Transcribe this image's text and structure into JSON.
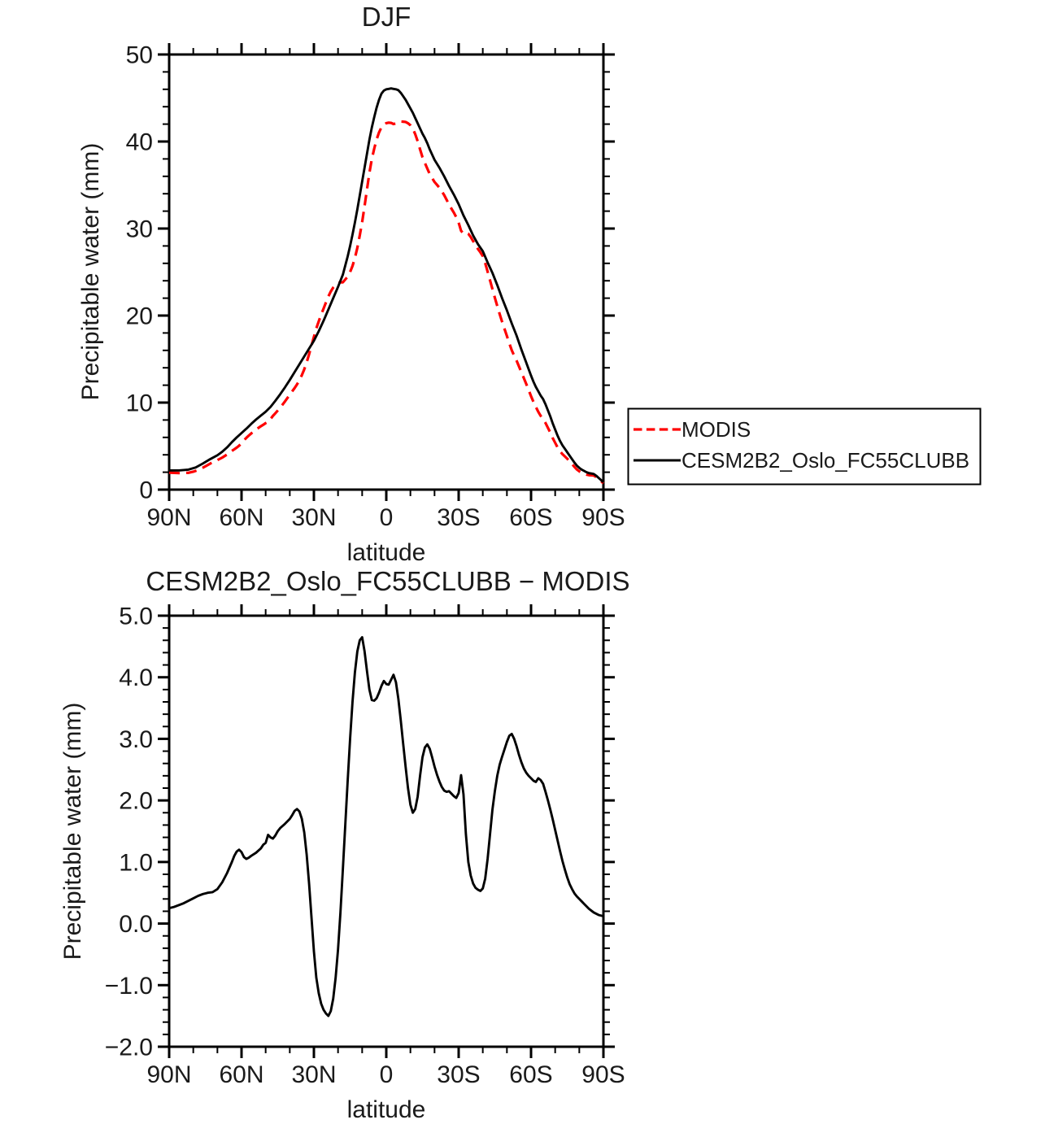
{
  "figure": {
    "background": "#ffffff",
    "text_color": "#1a1a1a",
    "axis_color": "#000000"
  },
  "chart_data": [
    {
      "id": "djf-precipitable-water",
      "type": "line",
      "title": "DJF",
      "xlabel": "latitude",
      "ylabel": "Precipitable water (mm)",
      "xlim_lat": [
        90,
        -90
      ],
      "ylim": [
        0,
        50
      ],
      "x_major_ticks_lat": [
        90,
        60,
        30,
        0,
        -30,
        -60,
        -90
      ],
      "x_tick_labels": [
        "90N",
        "60N",
        "30N",
        "0",
        "30S",
        "60S",
        "90S"
      ],
      "x_minor_step_deg": 10,
      "y_major_ticks": [
        0,
        10,
        20,
        30,
        40,
        50
      ],
      "y_tick_labels": [
        "0",
        "10",
        "20",
        "30",
        "40",
        "50"
      ],
      "y_minor_step": 2,
      "grid": false,
      "legend_position": "outside-right",
      "series": [
        {
          "name": "MODIS",
          "color": "#ff0000",
          "line_style": "dashed",
          "lat": [
            90,
            88,
            86,
            84,
            82,
            80,
            78,
            76,
            74,
            72,
            70,
            68,
            66,
            64,
            63,
            62,
            61,
            60,
            59,
            58,
            57,
            56,
            54,
            52,
            51,
            50,
            49,
            48,
            47,
            46,
            45,
            44,
            42,
            40,
            39,
            38,
            37,
            36,
            35,
            34,
            33,
            32,
            31,
            30,
            29,
            28,
            27,
            26,
            25,
            24,
            23,
            22,
            21,
            20,
            19,
            18,
            17,
            16,
            15,
            14,
            13,
            12,
            11,
            10,
            9,
            8,
            7,
            6,
            5,
            4,
            3,
            2,
            1,
            0,
            -1,
            -2,
            -3,
            -4,
            -5,
            -6,
            -7,
            -8,
            -9,
            -10,
            -11,
            -12,
            -13,
            -14,
            -15,
            -16,
            -17,
            -18,
            -19,
            -20,
            -21,
            -22,
            -23,
            -24,
            -25,
            -26,
            -27,
            -28,
            -29,
            -30,
            -31,
            -32,
            -33,
            -34,
            -35,
            -36,
            -37,
            -38,
            -39,
            -40,
            -41,
            -42,
            -43,
            -44,
            -45,
            -46,
            -47,
            -48,
            -49,
            -50,
            -51,
            -52,
            -53,
            -54,
            -55,
            -56,
            -57,
            -58,
            -59,
            -60,
            -61,
            -62,
            -63,
            -64,
            -65,
            -66,
            -67,
            -68,
            -69,
            -70,
            -71,
            -72,
            -73,
            -74,
            -75,
            -76,
            -77,
            -78,
            -79,
            -80,
            -81,
            -82,
            -83,
            -84,
            -85,
            -86,
            -87,
            -88,
            -89,
            -90
          ],
          "values": [
            1.95,
            1.93,
            1.9,
            1.92,
            1.93,
            2.06,
            2.25,
            2.52,
            2.83,
            3.14,
            3.39,
            3.68,
            4.03,
            4.45,
            4.63,
            4.83,
            5.05,
            5.34,
            5.67,
            5.95,
            6.21,
            6.45,
            6.9,
            7.28,
            7.45,
            7.64,
            7.79,
            8.1,
            8.47,
            8.77,
            9.08,
            9.4,
            10.13,
            10.9,
            11.29,
            11.67,
            12.09,
            12.58,
            13.15,
            13.82,
            14.63,
            15.55,
            16.55,
            17.55,
            18.53,
            19.33,
            20.1,
            20.8,
            21.51,
            22.2,
            22.77,
            23.22,
            23.53,
            23.72,
            23.82,
            23.82,
            24.15,
            24.48,
            25.0,
            25.7,
            26.62,
            27.78,
            29.2,
            30.75,
            32.58,
            34.5,
            36.4,
            37.97,
            39.18,
            40.24,
            41.05,
            41.64,
            41.91,
            42.11,
            42.17,
            42.14,
            42.01,
            42.08,
            42.25,
            42.3,
            42.28,
            42.25,
            42.1,
            41.87,
            41.5,
            40.84,
            40.04,
            39.1,
            38.2,
            37.54,
            36.89,
            36.26,
            35.8,
            35.35,
            35.03,
            34.69,
            34.28,
            33.84,
            33.31,
            32.75,
            32.29,
            31.83,
            31.31,
            30.68,
            29.74,
            29.4,
            29.5,
            29.4,
            29.02,
            28.55,
            28.12,
            27.65,
            27.27,
            26.83,
            26.02,
            25.05,
            24.05,
            23.05,
            22.05,
            21.1,
            20.17,
            19.29,
            18.47,
            17.65,
            16.8,
            16.02,
            15.4,
            14.82,
            14.16,
            13.48,
            12.83,
            12.15,
            11.45,
            10.74,
            10.08,
            9.5,
            8.94,
            8.47,
            8.13,
            7.66,
            7.1,
            6.55,
            5.91,
            5.38,
            4.85,
            4.42,
            4.08,
            3.82,
            3.55,
            3.26,
            2.94,
            2.61,
            2.31,
            2.1,
            1.94,
            1.83,
            1.72,
            1.66,
            1.64,
            1.62,
            1.44,
            1.21,
            0.97,
            0.73
          ]
        },
        {
          "name": "CESM2B2_Oslo_FC55CLUBB",
          "color": "#000000",
          "line_style": "solid",
          "lat": [
            90,
            86,
            82,
            79,
            76,
            73,
            70,
            68,
            66,
            64,
            62,
            60,
            58,
            56,
            54,
            52,
            50,
            48,
            46,
            44,
            42,
            40,
            38,
            36,
            34,
            32,
            30,
            28,
            26,
            24,
            22,
            20,
            18,
            16,
            15,
            14,
            13,
            12,
            11,
            10,
            9,
            8,
            7,
            6,
            5,
            4,
            3,
            2,
            1,
            0,
            -1,
            -2,
            -3,
            -4,
            -5,
            -6,
            -7,
            -8,
            -9,
            -10,
            -11,
            -12,
            -13,
            -14,
            -15,
            -16,
            -17,
            -18,
            -19,
            -20,
            -22,
            -24,
            -26,
            -28,
            -30,
            -32,
            -34,
            -36,
            -38,
            -40,
            -42,
            -44,
            -46,
            -48,
            -50,
            -52,
            -54,
            -56,
            -58,
            -60,
            -61,
            -62,
            -63,
            -64,
            -65,
            -66,
            -67,
            -68,
            -69,
            -70,
            -71,
            -72,
            -73,
            -74,
            -75,
            -76,
            -77,
            -78,
            -79,
            -80,
            -81,
            -82,
            -83,
            -84,
            -85,
            -86,
            -87,
            -88,
            -89,
            -90
          ],
          "values": [
            2.2,
            2.2,
            2.3,
            2.55,
            3.0,
            3.5,
            3.95,
            4.35,
            4.85,
            5.45,
            6.0,
            6.5,
            7.0,
            7.55,
            8.05,
            8.5,
            8.95,
            9.5,
            10.2,
            10.95,
            11.75,
            12.6,
            13.5,
            14.4,
            15.3,
            16.2,
            17.1,
            18.2,
            19.4,
            20.7,
            22.0,
            23.3,
            24.7,
            26.8,
            28.0,
            29.3,
            30.7,
            32.2,
            33.8,
            35.4,
            37.0,
            38.6,
            40.2,
            41.6,
            42.8,
            43.9,
            44.8,
            45.5,
            45.85,
            46.0,
            46.05,
            46.1,
            46.05,
            46.0,
            45.9,
            45.6,
            45.2,
            44.8,
            44.3,
            43.8,
            43.3,
            42.7,
            42.1,
            41.5,
            40.9,
            40.4,
            39.8,
            39.1,
            38.5,
            37.9,
            37.0,
            36.0,
            34.9,
            33.9,
            32.8,
            31.5,
            30.4,
            29.2,
            28.2,
            27.4,
            26.1,
            24.9,
            23.5,
            22.0,
            20.6,
            19.1,
            17.7,
            16.1,
            14.6,
            13.1,
            12.4,
            11.8,
            11.3,
            10.8,
            10.4,
            9.8,
            9.1,
            8.4,
            7.6,
            6.9,
            6.2,
            5.6,
            5.1,
            4.7,
            4.3,
            3.9,
            3.5,
            3.1,
            2.75,
            2.5,
            2.3,
            2.15,
            2.0,
            1.9,
            1.85,
            1.8,
            1.6,
            1.35,
            1.1,
            0.85
          ]
        }
      ]
    },
    {
      "id": "difference-cesm-minus-modis",
      "type": "line",
      "title": "CESM2B2_Oslo_FC55CLUBB − MODIS",
      "xlabel": "latitude",
      "ylabel": "Precipitable water (mm)",
      "xlim_lat": [
        90,
        -90
      ],
      "ylim": [
        -2,
        5
      ],
      "x_major_ticks_lat": [
        90,
        60,
        30,
        0,
        -30,
        -60,
        -90
      ],
      "x_tick_labels": [
        "90N",
        "60N",
        "30N",
        "0",
        "30S",
        "60S",
        "90S"
      ],
      "x_minor_step_deg": 10,
      "y_major_ticks": [
        -2,
        -1,
        0,
        1,
        2,
        3,
        4,
        5
      ],
      "y_tick_labels": [
        "−2.0",
        "−1.0",
        "0.0",
        "1.0",
        "2.0",
        "3.0",
        "4.0",
        "5.0"
      ],
      "y_minor_step": 0.2,
      "grid": false,
      "series": [
        {
          "name": "CESM2B2_Oslo_FC55CLUBB − MODIS",
          "color": "#000000",
          "line_style": "solid",
          "lat": [
            90,
            88,
            86,
            84,
            82,
            80,
            78,
            76,
            74,
            72,
            70,
            68,
            66,
            64,
            63,
            62,
            61,
            60,
            59,
            58,
            57,
            56,
            54,
            52,
            51,
            50,
            49,
            48,
            47,
            46,
            45,
            44,
            42,
            40,
            39,
            38,
            37,
            36,
            35,
            34,
            33,
            32,
            31,
            30,
            29,
            28,
            27,
            26,
            25,
            24,
            23,
            22,
            21,
            20,
            19,
            18,
            17,
            16,
            15,
            14,
            13,
            12,
            11,
            10,
            9,
            8,
            7,
            6,
            5,
            4,
            3,
            2,
            1,
            0,
            -1,
            -2,
            -3,
            -4,
            -5,
            -6,
            -7,
            -8,
            -9,
            -10,
            -11,
            -12,
            -13,
            -14,
            -15,
            -16,
            -17,
            -18,
            -19,
            -20,
            -21,
            -22,
            -23,
            -24,
            -25,
            -26,
            -27,
            -28,
            -29,
            -30,
            -31,
            -32,
            -33,
            -34,
            -35,
            -36,
            -37,
            -38,
            -39,
            -40,
            -41,
            -42,
            -43,
            -44,
            -45,
            -46,
            -47,
            -48,
            -49,
            -50,
            -51,
            -52,
            -53,
            -54,
            -55,
            -56,
            -57,
            -58,
            -59,
            -60,
            -61,
            -62,
            -63,
            -64,
            -65,
            -66,
            -67,
            -68,
            -69,
            -70,
            -71,
            -72,
            -73,
            -74,
            -75,
            -76,
            -77,
            -78,
            -79,
            -80,
            -81,
            -82,
            -83,
            -84,
            -85,
            -86,
            -87,
            -88,
            -89,
            -90
          ],
          "values": [
            0.25,
            0.27,
            0.3,
            0.33,
            0.37,
            0.41,
            0.45,
            0.48,
            0.5,
            0.51,
            0.56,
            0.67,
            0.82,
            1.0,
            1.1,
            1.17,
            1.2,
            1.16,
            1.08,
            1.05,
            1.07,
            1.1,
            1.15,
            1.22,
            1.28,
            1.31,
            1.44,
            1.4,
            1.38,
            1.43,
            1.5,
            1.55,
            1.62,
            1.7,
            1.76,
            1.83,
            1.86,
            1.82,
            1.7,
            1.48,
            1.12,
            0.65,
            0.1,
            -0.45,
            -0.88,
            -1.13,
            -1.3,
            -1.4,
            -1.46,
            -1.5,
            -1.42,
            -1.22,
            -0.88,
            -0.42,
            0.18,
            0.88,
            1.6,
            2.32,
            3.0,
            3.6,
            4.08,
            4.42,
            4.6,
            4.65,
            4.42,
            4.1,
            3.8,
            3.63,
            3.62,
            3.66,
            3.75,
            3.86,
            3.94,
            3.89,
            3.88,
            3.96,
            4.04,
            3.92,
            3.65,
            3.3,
            2.92,
            2.55,
            2.2,
            1.93,
            1.8,
            1.86,
            2.06,
            2.4,
            2.7,
            2.86,
            2.91,
            2.84,
            2.7,
            2.55,
            2.42,
            2.31,
            2.22,
            2.16,
            2.14,
            2.15,
            2.11,
            2.07,
            2.04,
            2.12,
            2.41,
            2.1,
            1.45,
            1.0,
            0.78,
            0.65,
            0.58,
            0.55,
            0.53,
            0.57,
            0.73,
            1.05,
            1.45,
            1.85,
            2.15,
            2.4,
            2.58,
            2.71,
            2.83,
            2.95,
            3.05,
            3.08,
            3.0,
            2.88,
            2.74,
            2.62,
            2.52,
            2.45,
            2.4,
            2.36,
            2.32,
            2.3,
            2.36,
            2.33,
            2.27,
            2.14,
            2.0,
            1.85,
            1.69,
            1.52,
            1.35,
            1.18,
            1.02,
            0.88,
            0.75,
            0.64,
            0.56,
            0.49,
            0.44,
            0.4,
            0.36,
            0.32,
            0.28,
            0.24,
            0.21,
            0.18,
            0.16,
            0.14,
            0.13,
            0.12
          ]
        }
      ]
    }
  ],
  "legend": {
    "border_color": "#000000",
    "items": [
      {
        "label": "MODIS",
        "color": "#ff0000",
        "line_style": "dashed"
      },
      {
        "label": "CESM2B2_Oslo_FC55CLUBB",
        "color": "#000000",
        "line_style": "solid"
      }
    ]
  }
}
